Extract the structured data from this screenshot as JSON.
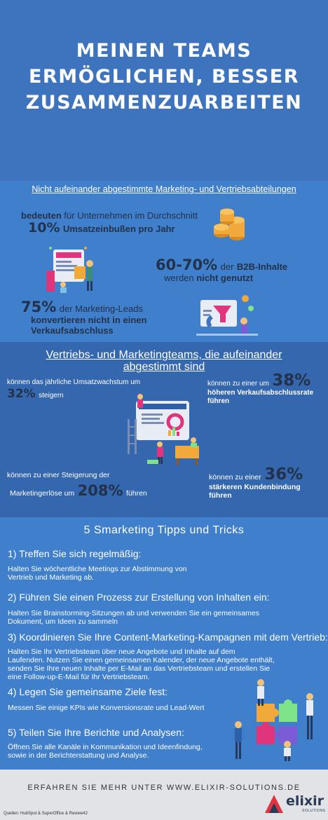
{
  "hero": {
    "title_lines": [
      "MEINEN TEAMS",
      "ERMÖGLICHEN, BESSER",
      "ZUSAMMENZUARBEITEN"
    ]
  },
  "misaligned": {
    "heading": "Nicht aufeinander abgestimmte Marketing- und Vertriebsabteilungen",
    "stat1": {
      "pre": "bedeuten",
      "mid": " für Unternehmen im Durchschnitt",
      "value": "10%",
      "post": "Umsatzeinbußen pro Jahr"
    },
    "stat2": {
      "value": "60-70%",
      "mid": "der",
      "bold": "B2B-Inhalte",
      "line2_pre": "werden",
      "line2_bold": "nicht genutzt"
    },
    "stat3": {
      "value": "75%",
      "mid": "der Marketing-Leads",
      "line2": "konvertieren nicht in einen",
      "line3": "Verkaufsabschluss"
    }
  },
  "aligned": {
    "heading_line1": "Vertriebs- und Marketingteams, die aufeinander",
    "heading_line2": "abgestimmt sind",
    "stat1": {
      "text": "können das jährliche Umsatzwachstum um",
      "value": "32%",
      "post": "steigern"
    },
    "stat2": {
      "pre": "können zu einer um",
      "value": "38%",
      "line2": "höheren Verkaufsabschlussrate",
      "line3": "führen"
    },
    "stat3": {
      "line1": "können zu einer Steigerung der",
      "pre": "Marketingerlöse um",
      "value": "208%",
      "post": "führen"
    },
    "stat4": {
      "pre": "können zu einer",
      "value": "36%",
      "line2": "stärkeren Kundenbindung",
      "line3": "führen"
    }
  },
  "tips": {
    "heading": "5 Smarketing Tipps und Tricks",
    "items": [
      {
        "title": "1) Treffen Sie sich regelmäßig:",
        "body": [
          "Halten Sie wöchentliche Meetings zur Abstimmung von",
          "Vertrieb und Marketing ab."
        ]
      },
      {
        "title": "2) Führen Sie einen Prozess zur Erstellung von Inhalten ein:",
        "body": [
          "Halten Sie Brainstorming-Sitzungen ab und verwenden Sie ein gemeinsames",
          "Dokument, um Ideen zu sammeln"
        ]
      },
      {
        "title": "3) Koordinieren Sie Ihre Content-Marketing-Kampagnen mit dem Vertrieb:",
        "body": [
          "Halten Sie Ihr Vertriebsteam über neue Angebote und Inhalte auf dem",
          "Laufenden. Nutzen Sie einen gemeinsamen Kalender, der neue Angebote enthält,",
          "senden Sie Ihre neuen Inhalte per E-Mail an das Vertriebsteam und erstellen Sie",
          "eine Follow-up-E-Mail für Ihr Vertriebsteam."
        ]
      },
      {
        "title": "4) Legen Sie gemeinsame Ziele fest:",
        "body": [
          "Messen Sie einige KPIs wie Konversionsrate und Lead-Wert"
        ]
      },
      {
        "title": "5) Teilen Sie Ihre Berichte und Analysen:",
        "body": [
          "Öffnen Sie alle Kanäle in Kommunikation und Ideenfindung,",
          "sowie in der Berichterstattung und Analyse."
        ]
      }
    ]
  },
  "footer": {
    "cta": "ERFAHREN SIE MEHR UNTER WWW.ELIXIR-SOLUTIONS.DE",
    "sources": "Quellen:  HubSpot & SuperOffice & Review42",
    "logo_word": "elixir",
    "logo_sub": "SOLUTIONS"
  },
  "colors": {
    "hero": "#3d74bd",
    "section": "#3f7fcb",
    "section_dark": "#3467ad",
    "stat_dark": "#23324a",
    "footer": "#e1e3e6",
    "coin": "#f2a93b",
    "logo_red": "#e0343f"
  },
  "icons": [
    "coins-icon",
    "content-screen-illustration",
    "marketing-funnel-illustration",
    "team-dashboard-illustration",
    "puzzle-team-illustration",
    "elixir-logo-icon"
  ]
}
